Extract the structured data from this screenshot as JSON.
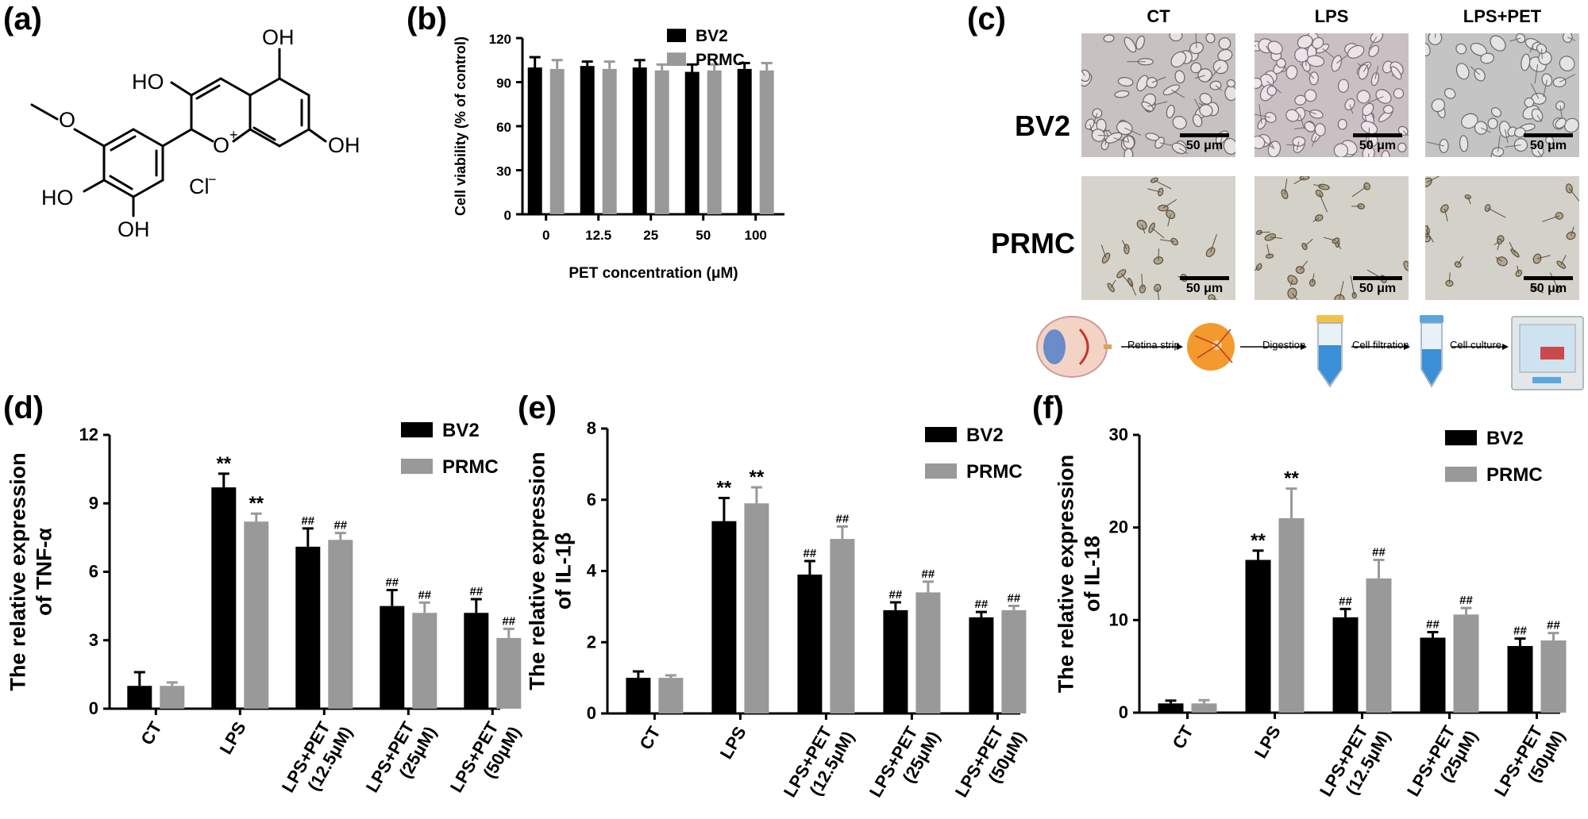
{
  "panels": {
    "a": "(a)",
    "b": "(b)",
    "c": "(c)",
    "d": "(d)",
    "e": "(e)",
    "f": "(f)"
  },
  "structure": {
    "oh_top": "OH",
    "ho_left": "HO",
    "oh_right": "OH",
    "ho_bottom": "HO",
    "oh_bottom": "OH",
    "o_plus": "O",
    "plus": "+",
    "chloride": "Cl",
    "minus": "−"
  },
  "micrographs": {
    "columns": [
      "CT",
      "LPS",
      "LPS+PET"
    ],
    "rows": [
      "BV2",
      "PRMC"
    ],
    "scale": "50 μm"
  },
  "workflow": {
    "steps": [
      "Retina strip",
      "Digestion",
      "Cell filtration",
      "Cell culture"
    ]
  },
  "colors": {
    "bv2": "#000000",
    "prmc": "#999999"
  },
  "chart_data": [
    {
      "id": "b",
      "type": "bar",
      "categories": [
        "0",
        "12.5",
        "25",
        "50",
        "100"
      ],
      "series": [
        {
          "name": "BV2",
          "values": [
            100,
            101,
            100,
            97,
            99
          ],
          "errors": [
            7,
            3,
            5,
            5,
            4
          ]
        },
        {
          "name": "PRMC",
          "values": [
            99,
            99,
            98,
            98,
            98
          ],
          "errors": [
            6,
            5,
            4,
            4,
            5
          ]
        }
      ],
      "xlabel": "PET concentration (μM)",
      "ylabel": "Cell viability (% of control)",
      "ylim": [
        0,
        120
      ],
      "yticks": [
        "0",
        "30",
        "60",
        "90",
        "120"
      ],
      "annotations": [
        [
          "",
          ""
        ],
        [
          "",
          ""
        ],
        [
          "",
          ""
        ],
        [
          "",
          ""
        ],
        [
          "",
          ""
        ]
      ]
    },
    {
      "id": "d",
      "type": "bar",
      "categories": [
        [
          "CT"
        ],
        [
          "LPS"
        ],
        [
          "LPS+PET",
          "(12.5μM)"
        ],
        [
          "LPS+PET",
          "(25μM)"
        ],
        [
          "LPS+PET",
          "(50μM)"
        ]
      ],
      "series": [
        {
          "name": "BV2",
          "values": [
            1.0,
            9.7,
            7.1,
            4.5,
            4.2
          ],
          "errors": [
            0.6,
            0.6,
            0.8,
            0.7,
            0.6
          ]
        },
        {
          "name": "PRMC",
          "values": [
            1.0,
            8.2,
            7.4,
            4.2,
            3.1
          ],
          "errors": [
            0.15,
            0.35,
            0.3,
            0.45,
            0.4
          ]
        }
      ],
      "ylabel": [
        "The relative expression",
        "of TNF-α"
      ],
      "ylim": [
        0,
        12
      ],
      "yticks": [
        "0",
        "3",
        "6",
        "9",
        "12"
      ],
      "annotations": [
        [
          "",
          ""
        ],
        [
          "**",
          "**"
        ],
        [
          "##",
          "##"
        ],
        [
          "##",
          "##"
        ],
        [
          "##",
          "##"
        ]
      ]
    },
    {
      "id": "e",
      "type": "bar",
      "categories": [
        [
          "CT"
        ],
        [
          "LPS"
        ],
        [
          "LPS+PET",
          "(12.5μM)"
        ],
        [
          "LPS+PET",
          "(25μM)"
        ],
        [
          "LPS+PET",
          "(50μM)"
        ]
      ],
      "series": [
        {
          "name": "BV2",
          "values": [
            1.0,
            5.4,
            3.9,
            2.9,
            2.7
          ],
          "errors": [
            0.18,
            0.65,
            0.38,
            0.22,
            0.15
          ]
        },
        {
          "name": "PRMC",
          "values": [
            1.0,
            5.9,
            4.9,
            3.4,
            2.9
          ],
          "errors": [
            0.07,
            0.45,
            0.35,
            0.3,
            0.12
          ]
        }
      ],
      "ylabel": [
        "The relative expression",
        "of IL-1β"
      ],
      "ylim": [
        0,
        8
      ],
      "yticks": [
        "0",
        "2",
        "4",
        "6",
        "8"
      ],
      "annotations": [
        [
          "",
          ""
        ],
        [
          "**",
          "**"
        ],
        [
          "##",
          "##"
        ],
        [
          "##",
          "##"
        ],
        [
          "##",
          "##"
        ]
      ]
    },
    {
      "id": "f",
      "type": "bar",
      "categories": [
        [
          "CT"
        ],
        [
          "LPS"
        ],
        [
          "LPS+PET",
          "(12.5μM)"
        ],
        [
          "LPS+PET",
          "(25μM)"
        ],
        [
          "LPS+PET",
          "(50μM)"
        ]
      ],
      "series": [
        {
          "name": "BV2",
          "values": [
            1.0,
            16.5,
            10.3,
            8.1,
            7.2
          ],
          "errors": [
            0.3,
            1.0,
            0.9,
            0.6,
            0.8
          ]
        },
        {
          "name": "PRMC",
          "values": [
            1.0,
            21.0,
            14.5,
            10.6,
            7.8
          ],
          "errors": [
            0.35,
            3.2,
            2.0,
            0.7,
            0.8
          ]
        }
      ],
      "ylabel": [
        "The relative expression",
        "of IL-18"
      ],
      "ylim": [
        0,
        30
      ],
      "yticks": [
        "0",
        "10",
        "20",
        "30"
      ],
      "annotations": [
        [
          "",
          ""
        ],
        [
          "**",
          "**"
        ],
        [
          "##",
          "##"
        ],
        [
          "##",
          "##"
        ],
        [
          "##",
          "##"
        ]
      ]
    }
  ]
}
